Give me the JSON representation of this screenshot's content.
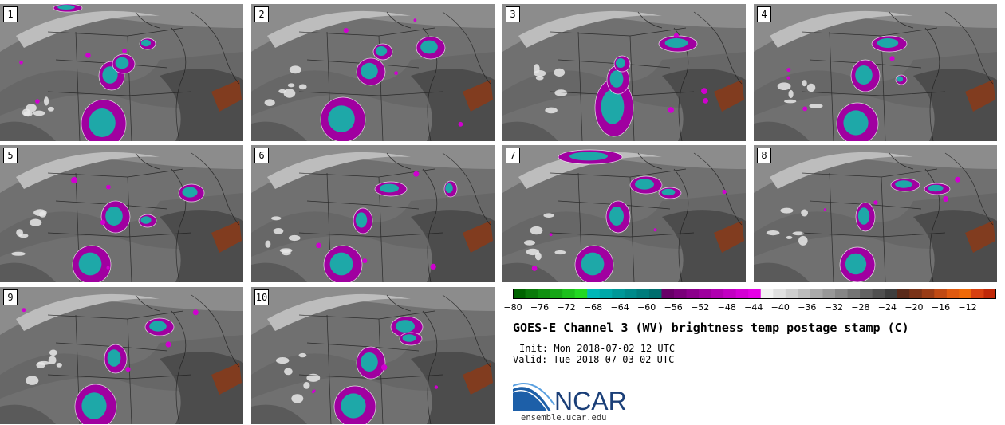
{
  "panels": [
    {
      "label": "1"
    },
    {
      "label": "2"
    },
    {
      "label": "3"
    },
    {
      "label": "4"
    },
    {
      "label": "5"
    },
    {
      "label": "6"
    },
    {
      "label": "7"
    },
    {
      "label": "8"
    },
    {
      "label": "9"
    },
    {
      "label": "10"
    }
  ],
  "colorbar": {
    "tick_labels": [
      "−80",
      "−76",
      "−72",
      "−68",
      "−64",
      "−60",
      "−56",
      "−52",
      "−48",
      "−44",
      "−40",
      "−36",
      "−32",
      "−28",
      "−24",
      "−20",
      "−16",
      "−12"
    ],
    "colors": [
      "#006400",
      "#0a7a0a",
      "#109010",
      "#16a616",
      "#1cc01c",
      "#22d822",
      "#00b8b8",
      "#00a8a8",
      "#009898",
      "#008a8a",
      "#007c7c",
      "#006e6e",
      "#680068",
      "#7a007a",
      "#8c008c",
      "#9e009e",
      "#b000b0",
      "#c200c2",
      "#d400d4",
      "#e600e6",
      "#f2f2f2",
      "#e0e0e0",
      "#cecece",
      "#bcbcbc",
      "#aaaaaa",
      "#989898",
      "#868686",
      "#747474",
      "#626262",
      "#505050",
      "#3e3e3e",
      "#5a2a1a",
      "#7a3318",
      "#9a3c16",
      "#c04a14",
      "#e05a10",
      "#f06a08",
      "#d84010",
      "#c02808"
    ]
  },
  "title": "GOES-E Channel 3 (WV) brightness temp postage stamp (C)",
  "init": "Init: Mon 2018-07-02 12 UTC",
  "valid": "Valid: Tue 2018-07-03 02 UTC",
  "logo": {
    "brand": "NCAR",
    "url": "ensemble.ucar.edu"
  }
}
